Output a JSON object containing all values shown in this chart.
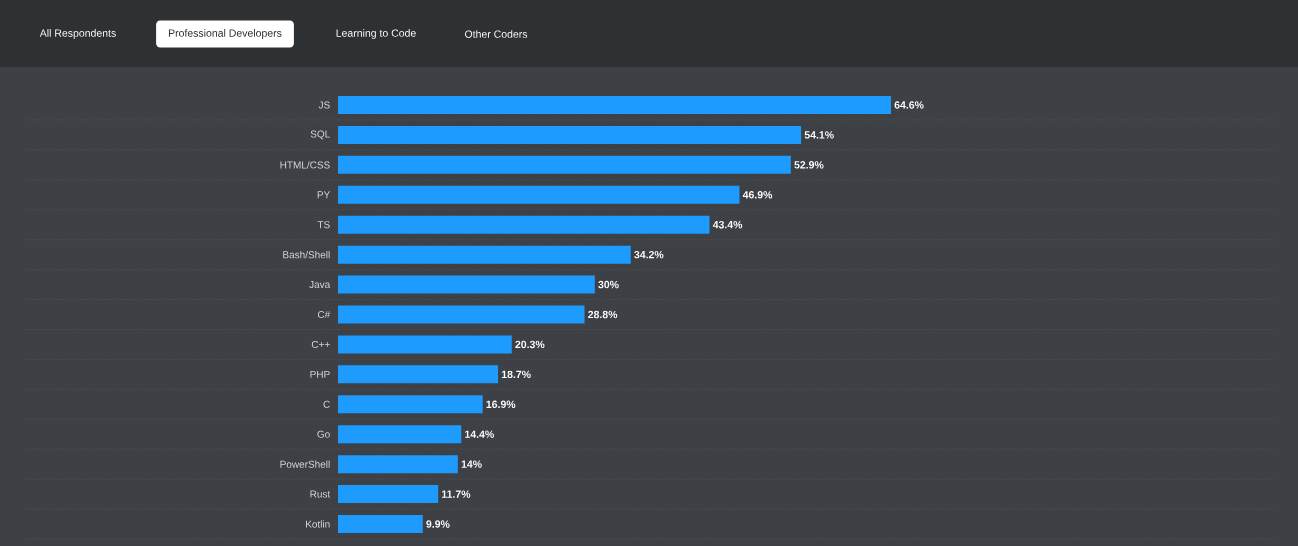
{
  "chart_data": {
    "type": "bar",
    "orientation": "horizontal",
    "categories": [
      "JS",
      "SQL",
      "HTML/CSS",
      "PY",
      "TS",
      "Bash/Shell",
      "Java",
      "C#",
      "C++",
      "PHP",
      "C",
      "Go",
      "PowerShell",
      "Rust",
      "Kotlin"
    ],
    "values": [
      64.6,
      54.1,
      52.9,
      46.9,
      43.4,
      34.2,
      30,
      28.8,
      20.3,
      18.7,
      16.9,
      14.4,
      14,
      11.7,
      9.9
    ],
    "value_labels": [
      "64.6%",
      "54.1%",
      "52.9%",
      "46.9%",
      "43.4%",
      "34.2%",
      "30%",
      "28.8%",
      "20.3%",
      "18.7%",
      "16.9%",
      "14.4%",
      "14%",
      "11.7%",
      "9.9%"
    ],
    "color": "#1e9bff",
    "grid": "y",
    "tick_labels": "y",
    "annotations": [
      "All Respondents",
      "Professional Developers",
      "Learning to Code",
      "Other Coders"
    ]
  }
}
